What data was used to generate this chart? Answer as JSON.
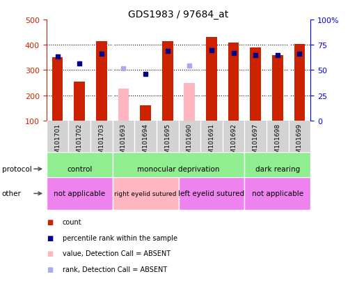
{
  "title": "GDS1983 / 97684_at",
  "samples": [
    "GSM101701",
    "GSM101702",
    "GSM101703",
    "GSM101693",
    "GSM101694",
    "GSM101695",
    "GSM101690",
    "GSM101691",
    "GSM101692",
    "GSM101697",
    "GSM101698",
    "GSM101699"
  ],
  "count_values": [
    350,
    255,
    415,
    null,
    160,
    415,
    null,
    430,
    410,
    390,
    358,
    402
  ],
  "count_absent": [
    null,
    null,
    null,
    228,
    null,
    null,
    250,
    null,
    null,
    null,
    null,
    null
  ],
  "rank_values": [
    355,
    325,
    366,
    null,
    284,
    375,
    null,
    378,
    367,
    360,
    358,
    365
  ],
  "rank_absent": [
    null,
    null,
    null,
    308,
    null,
    null,
    318,
    null,
    null,
    null,
    null,
    null
  ],
  "ylim_left": [
    100,
    500
  ],
  "yticks_left": [
    100,
    200,
    300,
    400,
    500
  ],
  "yticks_right": [
    0,
    25,
    50,
    75,
    100
  ],
  "yticklabels_right": [
    "0",
    "25",
    "50",
    "75",
    "100%"
  ],
  "proto_groups": [
    {
      "label": "control",
      "start": 0,
      "end": 3,
      "color": "#90EE90"
    },
    {
      "label": "monocular deprivation",
      "start": 3,
      "end": 9,
      "color": "#90EE90"
    },
    {
      "label": "dark rearing",
      "start": 9,
      "end": 12,
      "color": "#90EE90"
    }
  ],
  "other_groups": [
    {
      "label": "not applicable",
      "start": 0,
      "end": 3,
      "color": "#EE82EE"
    },
    {
      "label": "right eyelid sutured",
      "start": 3,
      "end": 6,
      "color": "#FFB6C1"
    },
    {
      "label": "left eyelid sutured",
      "start": 6,
      "end": 9,
      "color": "#EE82EE"
    },
    {
      "label": "not applicable",
      "start": 9,
      "end": 12,
      "color": "#EE82EE"
    }
  ],
  "count_color": "#CC2200",
  "count_absent_color": "#FFB6C1",
  "rank_color": "#00008B",
  "rank_absent_color": "#AAAAEE",
  "label_color_left": "#CC2200",
  "label_color_right": "#0000EE",
  "legend_items": [
    {
      "color": "#CC2200",
      "label": "count"
    },
    {
      "color": "#00008B",
      "label": "percentile rank within the sample"
    },
    {
      "color": "#FFB6C1",
      "label": "value, Detection Call = ABSENT"
    },
    {
      "color": "#AAAAEE",
      "label": "rank, Detection Call = ABSENT"
    }
  ]
}
